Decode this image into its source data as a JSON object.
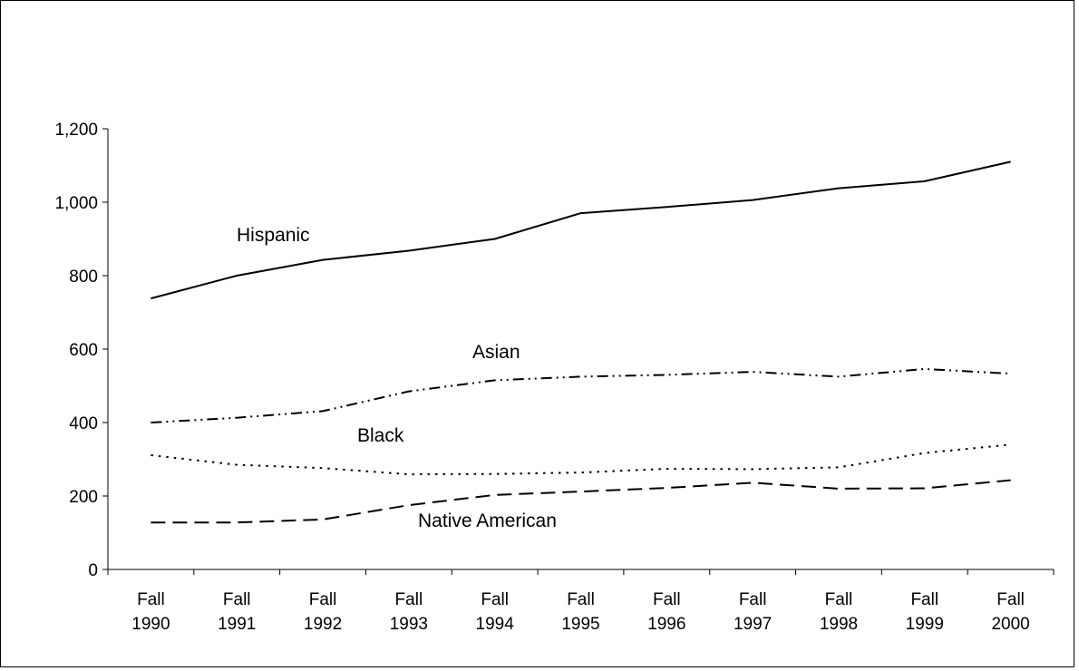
{
  "chart_data": {
    "type": "line",
    "title": "",
    "xlabel": "",
    "ylabel": "",
    "categories": [
      [
        "Fall",
        "1990"
      ],
      [
        "Fall",
        "1991"
      ],
      [
        "Fall",
        "1992"
      ],
      [
        "Fall",
        "1993"
      ],
      [
        "Fall",
        "1994"
      ],
      [
        "Fall",
        "1995"
      ],
      [
        "Fall",
        "1996"
      ],
      [
        "Fall",
        "1997"
      ],
      [
        "Fall",
        "1998"
      ],
      [
        "Fall",
        "1999"
      ],
      [
        "Fall",
        "2000"
      ]
    ],
    "ylim": [
      0,
      1200
    ],
    "yticks": [
      0,
      200,
      400,
      600,
      800,
      1000,
      1200
    ],
    "ytick_labels": [
      "0",
      "200",
      "400",
      "600",
      "800",
      "1,000",
      "1,200"
    ],
    "grid": false,
    "legend": "none (series labeled directly on chart)",
    "series": [
      {
        "name": "Hispanic",
        "style": "solid",
        "values": [
          738,
          800,
          843,
          868,
          900,
          970,
          987,
          1006,
          1038,
          1057,
          1110
        ]
      },
      {
        "name": "Asian",
        "style": "dash-dot-dot",
        "values": [
          400,
          413,
          431,
          485,
          515,
          525,
          530,
          538,
          525,
          546,
          533
        ]
      },
      {
        "name": "Black",
        "style": "dotted",
        "values": [
          311,
          285,
          276,
          259,
          260,
          264,
          274,
          273,
          278,
          317,
          340
        ]
      },
      {
        "name": "Native American",
        "style": "long-dash",
        "values": [
          128,
          128,
          136,
          175,
          203,
          212,
          222,
          236,
          220,
          221,
          243
        ]
      }
    ]
  }
}
